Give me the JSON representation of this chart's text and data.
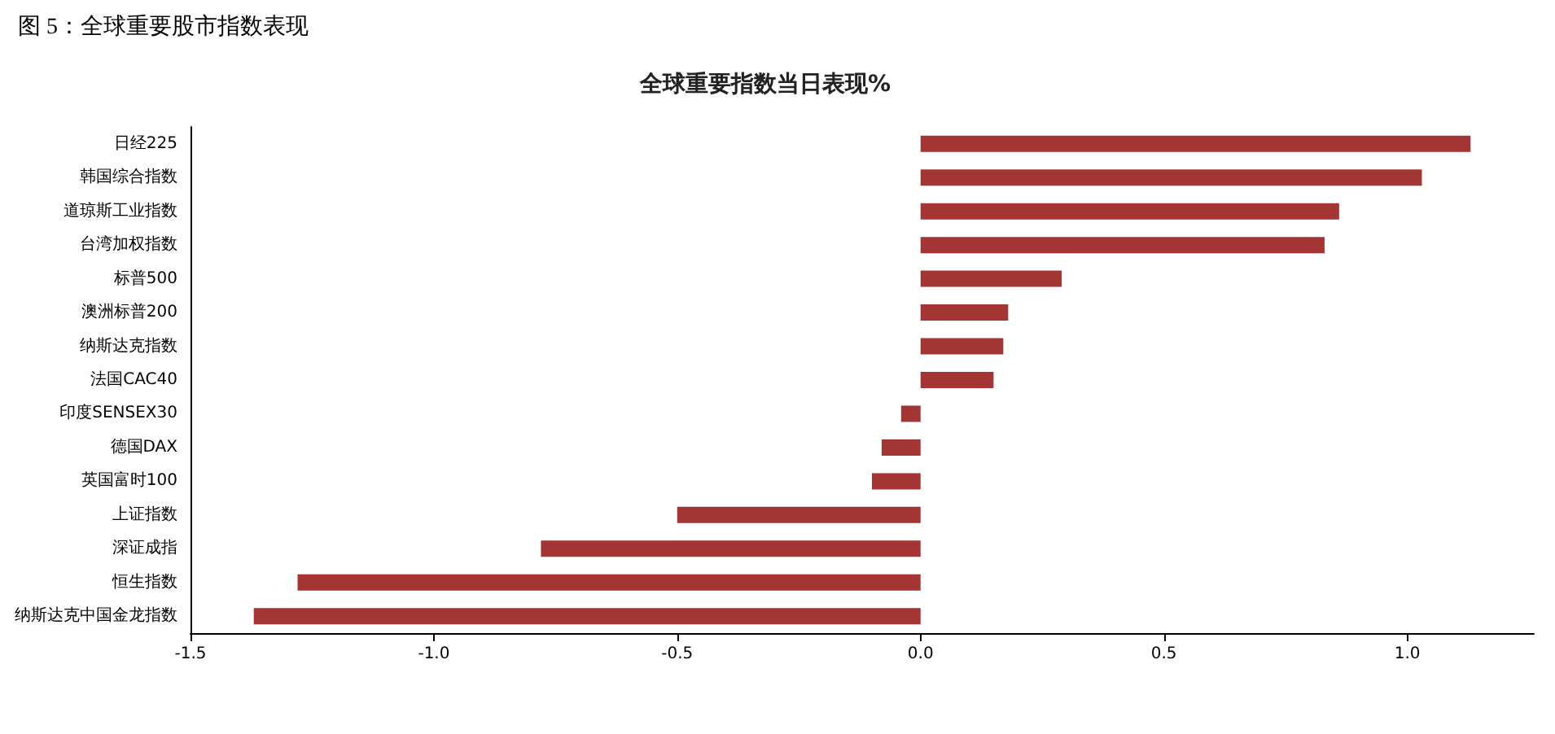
{
  "chart_data": {
    "type": "bar",
    "orientation": "horizontal",
    "title": "全球重要指数当日表现%",
    "subtitle": "图 5：全球重要股市指数表现",
    "categories": [
      "日经225",
      "韩国综合指数",
      "道琼斯工业指数",
      "台湾加权指数",
      "标普500",
      "澳洲标普200",
      "纳斯达克指数",
      "法国CAC40",
      "印度SENSEX30",
      "德国DAX",
      "英国富时100",
      "上证指数",
      "深证成指",
      "恒生指数",
      "纳斯达克中国金龙指数"
    ],
    "values": [
      1.13,
      1.03,
      0.86,
      0.83,
      0.29,
      0.18,
      0.17,
      0.15,
      -0.04,
      -0.08,
      -0.1,
      -0.5,
      -0.78,
      -1.28,
      -1.37
    ],
    "color": "#a33535",
    "xlim": [
      -1.5,
      1.26
    ],
    "xticks": [
      -1.5,
      {
        "value": -1,
        "label": "-1.0"
      },
      -0.5,
      {
        "value": 0,
        "label": "0.0"
      },
      0.5,
      {
        "value": 1,
        "label": "1.0"
      }
    ],
    "grid": false
  }
}
